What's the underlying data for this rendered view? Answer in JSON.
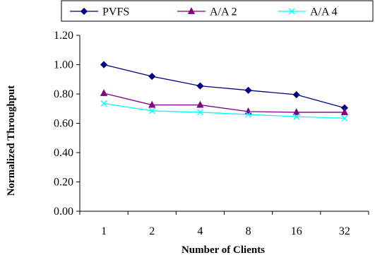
{
  "chart_data": {
    "type": "line",
    "xlabel": "Number of Clients",
    "ylabel": "Normalized Throughput",
    "categories": [
      "1",
      "2",
      "4",
      "8",
      "16",
      "32"
    ],
    "ylim": [
      0,
      1.2
    ],
    "yticks": [
      "0.00",
      "0.20",
      "0.40",
      "0.60",
      "0.80",
      "1.00",
      "1.20"
    ],
    "grid": false,
    "legend_position": "top",
    "series": [
      {
        "name": "PVFS",
        "values": [
          1.0,
          0.92,
          0.855,
          0.825,
          0.795,
          0.705
        ],
        "color": "#000080",
        "marker": "diamond"
      },
      {
        "name": "A/A 2",
        "values": [
          0.805,
          0.725,
          0.725,
          0.68,
          0.675,
          0.675
        ],
        "color": "#800080",
        "marker": "triangle"
      },
      {
        "name": "A/A 4",
        "values": [
          0.735,
          0.685,
          0.675,
          0.66,
          0.645,
          0.635
        ],
        "color": "#00FFFF",
        "marker": "x"
      }
    ]
  }
}
